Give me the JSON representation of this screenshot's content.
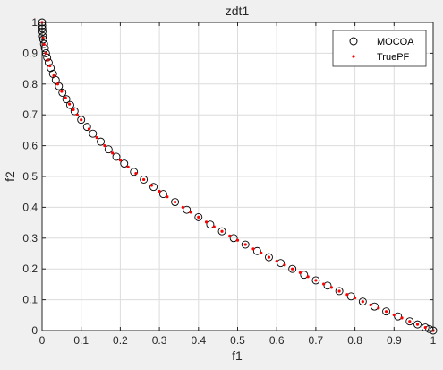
{
  "chart_data": {
    "type": "scatter",
    "title": "zdt1",
    "xlabel": "f1",
    "ylabel": "f2",
    "xlim": [
      0,
      1
    ],
    "ylim": [
      0,
      1
    ],
    "xticks": [
      "0",
      "0.1",
      "0.2",
      "0.3",
      "0.4",
      "0.5",
      "0.6",
      "0.7",
      "0.8",
      "0.9",
      "1"
    ],
    "yticks": [
      "0",
      "0.1",
      "0.2",
      "0.3",
      "0.4",
      "0.5",
      "0.6",
      "0.7",
      "0.8",
      "0.9",
      "1"
    ],
    "grid": true,
    "legend_position": "top-right",
    "series": [
      {
        "name": "MOCOA",
        "marker": "open-circle",
        "color": "#000000",
        "x": [
          0.0,
          0.0002,
          0.0005,
          0.001,
          0.002,
          0.003,
          0.005,
          0.007,
          0.01,
          0.013,
          0.017,
          0.022,
          0.028,
          0.035,
          0.043,
          0.052,
          0.062,
          0.072,
          0.083,
          0.1,
          0.115,
          0.13,
          0.15,
          0.17,
          0.19,
          0.21,
          0.235,
          0.26,
          0.285,
          0.31,
          0.34,
          0.37,
          0.4,
          0.43,
          0.46,
          0.49,
          0.52,
          0.55,
          0.58,
          0.61,
          0.64,
          0.67,
          0.7,
          0.73,
          0.76,
          0.79,
          0.82,
          0.85,
          0.88,
          0.91,
          0.94,
          0.96,
          0.98,
          0.99,
          1.0
        ],
        "y": [
          1.0,
          0.99,
          0.98,
          0.97,
          0.955,
          0.945,
          0.93,
          0.916,
          0.9,
          0.886,
          0.87,
          0.852,
          0.833,
          0.813,
          0.793,
          0.772,
          0.751,
          0.732,
          0.712,
          0.684,
          0.661,
          0.639,
          0.613,
          0.588,
          0.564,
          0.542,
          0.515,
          0.49,
          0.466,
          0.443,
          0.417,
          0.392,
          0.368,
          0.344,
          0.322,
          0.3,
          0.279,
          0.258,
          0.238,
          0.219,
          0.2,
          0.181,
          0.163,
          0.146,
          0.128,
          0.111,
          0.094,
          0.078,
          0.062,
          0.046,
          0.03,
          0.02,
          0.01,
          0.005,
          0.0
        ]
      },
      {
        "name": "TruePF",
        "marker": "dot",
        "color": "#ff0000",
        "x": [
          0.0,
          0.0025,
          0.005,
          0.01,
          0.015,
          0.02,
          0.03,
          0.04,
          0.05,
          0.06,
          0.07,
          0.08,
          0.09,
          0.1,
          0.12,
          0.14,
          0.16,
          0.18,
          0.2,
          0.22,
          0.24,
          0.26,
          0.28,
          0.3,
          0.32,
          0.34,
          0.36,
          0.38,
          0.4,
          0.42,
          0.44,
          0.46,
          0.48,
          0.5,
          0.52,
          0.54,
          0.56,
          0.58,
          0.6,
          0.62,
          0.64,
          0.66,
          0.68,
          0.7,
          0.72,
          0.74,
          0.76,
          0.78,
          0.8,
          0.82,
          0.84,
          0.86,
          0.88,
          0.9,
          0.92,
          0.94,
          0.96,
          0.98,
          1.0
        ],
        "y": [
          1.0,
          0.95,
          0.929,
          0.9,
          0.878,
          0.859,
          0.827,
          0.8,
          0.776,
          0.755,
          0.735,
          0.717,
          0.7,
          0.684,
          0.654,
          0.626,
          0.6,
          0.576,
          0.553,
          0.531,
          0.51,
          0.49,
          0.471,
          0.452,
          0.434,
          0.417,
          0.4,
          0.384,
          0.368,
          0.352,
          0.337,
          0.322,
          0.307,
          0.293,
          0.279,
          0.265,
          0.252,
          0.238,
          0.225,
          0.213,
          0.2,
          0.188,
          0.175,
          0.163,
          0.151,
          0.14,
          0.128,
          0.117,
          0.106,
          0.094,
          0.083,
          0.073,
          0.062,
          0.051,
          0.041,
          0.03,
          0.02,
          0.01,
          0.0
        ]
      }
    ]
  }
}
